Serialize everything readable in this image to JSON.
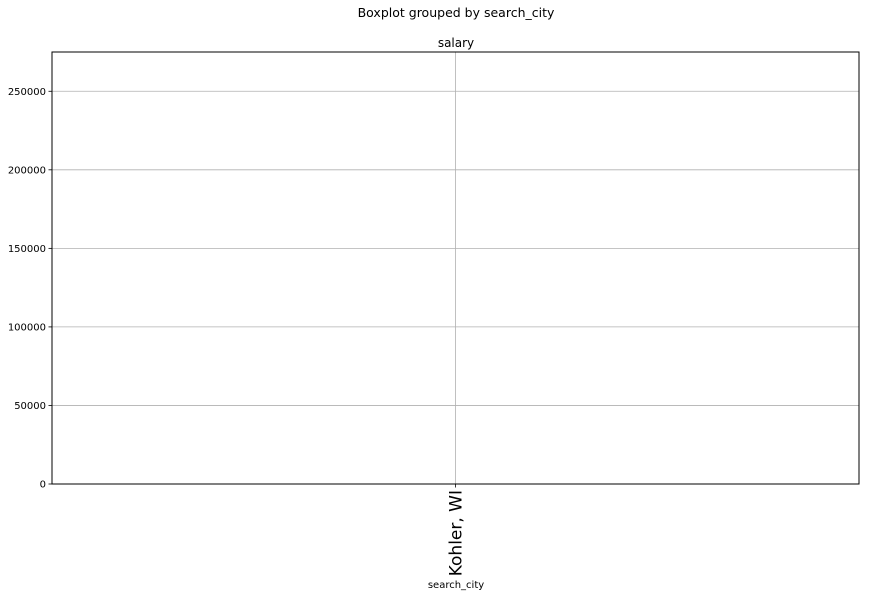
{
  "chart_data": {
    "type": "boxplot",
    "suptitle": "Boxplot grouped by search_city",
    "title": "salary",
    "xlabel": "search_city",
    "ylabel": "",
    "categories": [
      "Kohler, WI"
    ],
    "ylim": [
      0,
      275000
    ],
    "yticks": [
      0,
      50000,
      100000,
      150000,
      200000,
      250000
    ],
    "grid": true,
    "series": []
  }
}
